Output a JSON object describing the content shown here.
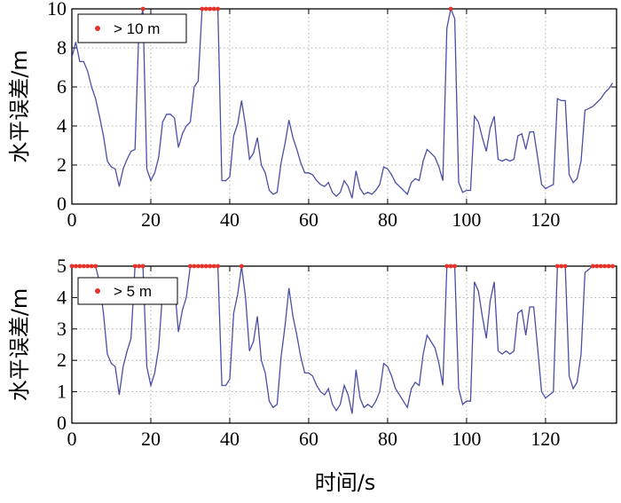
{
  "colors": {
    "line": "#4a4ea4",
    "marker": "#e8322a",
    "axis": "#000000"
  },
  "xlabel": "时间/s",
  "chart_data": [
    {
      "type": "line",
      "ylabel": "水平误差/m",
      "xlim": [
        0,
        138
      ],
      "ylim": [
        0,
        10
      ],
      "xticks": [
        0,
        20,
        40,
        60,
        80,
        100,
        120
      ],
      "yticks": [
        0,
        2,
        4,
        6,
        8,
        10
      ],
      "grid": true,
      "legend": {
        "position": "top-left",
        "label": "> 10 m"
      },
      "threshold": 10,
      "series": [
        {
          "x": [
            0,
            1,
            2,
            3,
            4,
            5,
            6,
            7,
            8,
            9,
            10,
            11,
            12,
            13,
            14,
            15,
            16,
            17,
            18,
            19,
            20,
            21,
            22,
            23,
            24,
            25,
            26,
            27,
            28,
            29,
            30,
            31,
            32,
            33,
            34,
            35,
            36,
            37,
            38,
            39,
            40,
            41,
            42,
            43,
            44,
            45,
            46,
            47,
            48,
            49,
            50,
            51,
            52,
            53,
            54,
            55,
            56,
            57,
            58,
            59,
            60,
            61,
            62,
            63,
            64,
            65,
            66,
            67,
            68,
            69,
            70,
            71,
            72,
            73,
            74,
            75,
            76,
            77,
            78,
            79,
            80,
            81,
            82,
            83,
            84,
            85,
            86,
            87,
            88,
            89,
            90,
            91,
            92,
            93,
            94,
            95,
            96,
            97,
            98,
            99,
            100,
            101,
            102,
            103,
            104,
            105,
            106,
            107,
            108,
            109,
            110,
            111,
            112,
            113,
            114,
            115,
            116,
            117,
            118,
            119,
            120,
            121,
            122,
            123,
            124,
            125,
            126,
            127,
            128,
            129,
            130,
            131,
            132,
            133,
            134,
            135,
            136,
            137
          ],
          "y": [
            7.5,
            8.3,
            7.3,
            7.3,
            6.8,
            6.0,
            5.4,
            4.5,
            3.5,
            2.2,
            1.9,
            1.8,
            0.9,
            1.8,
            2.3,
            2.7,
            2.8,
            9.0,
            10,
            1.8,
            1.2,
            1.6,
            2.4,
            4.2,
            4.6,
            4.6,
            4.4,
            2.9,
            3.6,
            4.0,
            4.2,
            6.0,
            6.3,
            10,
            10,
            10,
            10,
            10,
            1.2,
            1.2,
            1.4,
            3.5,
            4.1,
            5.3,
            4.0,
            2.3,
            2.6,
            3.4,
            2.0,
            1.6,
            0.7,
            0.5,
            0.6,
            2.1,
            3.1,
            4.3,
            3.4,
            2.8,
            2.1,
            1.6,
            1.6,
            1.5,
            1.2,
            1.0,
            0.9,
            1.1,
            0.6,
            0.4,
            0.6,
            1.2,
            0.9,
            0.3,
            1.7,
            0.8,
            0.5,
            0.6,
            0.5,
            0.7,
            1.0,
            1.9,
            1.8,
            1.5,
            1.1,
            0.9,
            0.7,
            0.5,
            1.1,
            1.3,
            1.2,
            2.2,
            2.8,
            2.6,
            2.4,
            1.9,
            1.2,
            9.0,
            10,
            9.5,
            1.1,
            0.6,
            0.7,
            0.7,
            4.5,
            4.2,
            3.4,
            2.7,
            3.9,
            4.5,
            2.3,
            2.2,
            2.3,
            2.2,
            2.3,
            3.5,
            3.6,
            2.8,
            3.7,
            3.7,
            2.4,
            1.0,
            0.8,
            0.9,
            1.0,
            5.4,
            5.3,
            5.3,
            1.5,
            1.1,
            1.3,
            2.2,
            4.8,
            4.9,
            5.0,
            5.2,
            5.4,
            5.7,
            5.9,
            6.2
          ]
        }
      ]
    },
    {
      "type": "line",
      "ylabel": "水平误差/m",
      "xlim": [
        0,
        138
      ],
      "ylim": [
        0,
        5
      ],
      "xticks": [
        0,
        20,
        40,
        60,
        80,
        100,
        120
      ],
      "yticks": [
        0,
        1,
        2,
        3,
        4,
        5
      ],
      "grid": true,
      "legend": {
        "position": "top-left",
        "label": "> 5 m"
      },
      "threshold": 5,
      "series": [
        {
          "x": [
            0,
            1,
            2,
            3,
            4,
            5,
            6,
            7,
            8,
            9,
            10,
            11,
            12,
            13,
            14,
            15,
            16,
            17,
            18,
            19,
            20,
            21,
            22,
            23,
            24,
            25,
            26,
            27,
            28,
            29,
            30,
            31,
            32,
            33,
            34,
            35,
            36,
            37,
            38,
            39,
            40,
            41,
            42,
            43,
            44,
            45,
            46,
            47,
            48,
            49,
            50,
            51,
            52,
            53,
            54,
            55,
            56,
            57,
            58,
            59,
            60,
            61,
            62,
            63,
            64,
            65,
            66,
            67,
            68,
            69,
            70,
            71,
            72,
            73,
            74,
            75,
            76,
            77,
            78,
            79,
            80,
            81,
            82,
            83,
            84,
            85,
            86,
            87,
            88,
            89,
            90,
            91,
            92,
            93,
            94,
            95,
            96,
            97,
            98,
            99,
            100,
            101,
            102,
            103,
            104,
            105,
            106,
            107,
            108,
            109,
            110,
            111,
            112,
            113,
            114,
            115,
            116,
            117,
            118,
            119,
            120,
            121,
            122,
            123,
            124,
            125,
            126,
            127,
            128,
            129,
            130,
            131,
            132,
            133,
            134,
            135,
            136,
            137
          ],
          "y": [
            5,
            5,
            5,
            5,
            5,
            5,
            5,
            4.5,
            3.5,
            2.2,
            1.9,
            1.8,
            0.9,
            1.8,
            2.3,
            2.7,
            5,
            5,
            5,
            1.8,
            1.2,
            1.6,
            2.4,
            4.2,
            4.6,
            4.6,
            4.4,
            2.9,
            3.6,
            4.0,
            5,
            5,
            5,
            5,
            5,
            5,
            5,
            5,
            1.2,
            1.2,
            1.4,
            3.5,
            4.1,
            5,
            4.0,
            2.3,
            2.6,
            3.4,
            2.0,
            1.6,
            0.7,
            0.5,
            0.6,
            2.1,
            3.1,
            4.3,
            3.4,
            2.8,
            2.1,
            1.6,
            1.6,
            1.5,
            1.2,
            1.0,
            0.9,
            1.1,
            0.6,
            0.4,
            0.6,
            1.2,
            0.9,
            0.3,
            1.7,
            0.8,
            0.5,
            0.6,
            0.5,
            0.7,
            1.0,
            1.9,
            1.8,
            1.5,
            1.1,
            0.9,
            0.7,
            0.5,
            1.1,
            1.3,
            1.2,
            2.2,
            2.8,
            2.6,
            2.4,
            1.9,
            1.2,
            5,
            5,
            5,
            1.1,
            0.6,
            0.7,
            0.7,
            4.5,
            4.2,
            3.4,
            2.7,
            3.9,
            4.5,
            2.3,
            2.2,
            2.3,
            2.2,
            2.3,
            3.5,
            3.6,
            2.8,
            3.7,
            3.7,
            2.4,
            1.0,
            0.8,
            0.9,
            1.0,
            5,
            5,
            5,
            1.5,
            1.1,
            1.3,
            2.2,
            4.8,
            4.9,
            5,
            5,
            5,
            5,
            5,
            5
          ]
        }
      ]
    }
  ]
}
